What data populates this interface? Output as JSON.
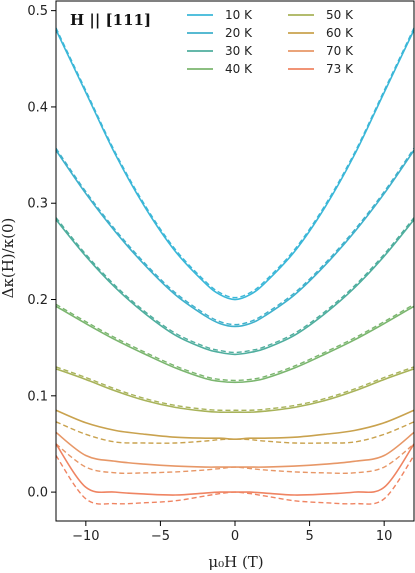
{
  "chart_data": {
    "type": "line",
    "annotation": "H || [111]",
    "xlabel": "μ₀H (T)",
    "ylabel": "Δκ(H)/κ(0)",
    "xlim": [
      -12,
      12
    ],
    "ylim": [
      -0.03,
      0.51
    ],
    "xticks": [
      -10,
      -5,
      0,
      5,
      10
    ],
    "xtick_labels": [
      "−10",
      "−5",
      "0",
      "5",
      "10"
    ],
    "yticks": [
      0.0,
      0.1,
      0.2,
      0.3,
      0.4,
      0.5
    ],
    "ytick_labels": [
      "0.0",
      "0.1",
      "0.2",
      "0.3",
      "0.4",
      "0.5"
    ],
    "legend_position": "top-right",
    "legend_columns": 2,
    "x": [
      -12,
      -10,
      -8,
      -6,
      -4,
      -2,
      -1,
      0,
      1,
      2,
      4,
      6,
      8,
      10,
      12
    ],
    "series": [
      {
        "name": "10 K",
        "color": "#3bb7d8",
        "values": [
          0.48,
          0.415,
          0.35,
          0.295,
          0.25,
          0.217,
          0.205,
          0.2,
          0.205,
          0.217,
          0.25,
          0.295,
          0.35,
          0.415,
          0.48
        ]
      },
      {
        "name": "20 K",
        "color": "#3fb1cc",
        "values": [
          0.355,
          0.31,
          0.27,
          0.235,
          0.205,
          0.183,
          0.175,
          0.172,
          0.175,
          0.183,
          0.205,
          0.235,
          0.27,
          0.31,
          0.355
        ]
      },
      {
        "name": "30 K",
        "color": "#4fae9e",
        "values": [
          0.283,
          0.245,
          0.212,
          0.185,
          0.163,
          0.149,
          0.145,
          0.143,
          0.145,
          0.149,
          0.163,
          0.185,
          0.212,
          0.245,
          0.283
        ]
      },
      {
        "name": "40 K",
        "color": "#7bb66f",
        "values": [
          0.193,
          0.175,
          0.158,
          0.143,
          0.129,
          0.118,
          0.115,
          0.114,
          0.115,
          0.118,
          0.129,
          0.143,
          0.158,
          0.175,
          0.193
        ]
      },
      {
        "name": "50 K",
        "color": "#a8b35a",
        "values": [
          0.128,
          0.117,
          0.105,
          0.095,
          0.088,
          0.084,
          0.083,
          0.083,
          0.083,
          0.084,
          0.088,
          0.095,
          0.105,
          0.117,
          0.128
        ]
      },
      {
        "name": "60 K",
        "color": "#c9a24e",
        "values": [
          0.085,
          0.072,
          0.064,
          0.06,
          0.057,
          0.056,
          0.056,
          0.055,
          0.056,
          0.056,
          0.057,
          0.06,
          0.064,
          0.072,
          0.085
        ]
      },
      {
        "name": "70 K",
        "color": "#e79767",
        "values": [
          0.062,
          0.038,
          0.032,
          0.029,
          0.027,
          0.026,
          0.026,
          0.026,
          0.026,
          0.026,
          0.027,
          0.029,
          0.032,
          0.038,
          0.062
        ]
      },
      {
        "name": "73 K",
        "color": "#ef8462",
        "values": [
          0.05,
          0.005,
          0.0,
          -0.002,
          -0.003,
          -0.001,
          0.0,
          0.0,
          0.0,
          -0.001,
          -0.003,
          -0.002,
          0.0,
          0.005,
          0.05
        ]
      }
    ]
  }
}
